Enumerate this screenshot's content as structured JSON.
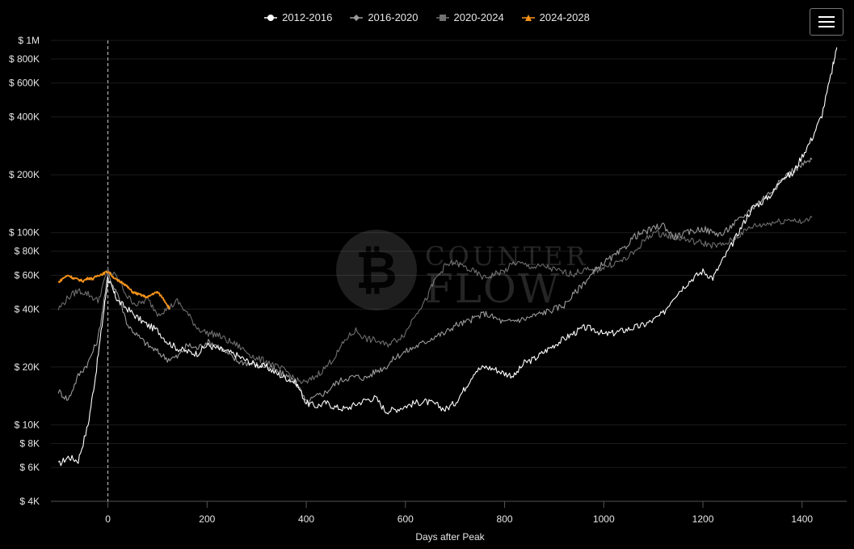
{
  "legend": [
    {
      "label": "2012-2016",
      "color": "#ffffff",
      "marker": "circle"
    },
    {
      "label": "2016-2020",
      "color": "#9a9a9a",
      "marker": "diamond"
    },
    {
      "label": "2020-2024",
      "color": "#707070",
      "marker": "square"
    },
    {
      "label": "2024-2028",
      "color": "#f7931a",
      "marker": "triangle"
    }
  ],
  "menu_icon": "hamburger-menu-icon",
  "watermark": {
    "counter": "COUNTER",
    "flow": "FLOW",
    "logo_glyph": "₿"
  },
  "chart_data": {
    "type": "line",
    "xlabel": "Days after Peak",
    "ylabel": "",
    "y_scale": "log",
    "xlim": [
      -115,
      1490
    ],
    "ylim": [
      4000,
      1000000
    ],
    "x_ticks": [
      0,
      200,
      400,
      600,
      800,
      1000,
      1200,
      1400
    ],
    "x_tick_labels": [
      "0",
      "200",
      "400",
      "600",
      "800",
      "1000",
      "1200",
      "1400"
    ],
    "y_ticks": [
      4000,
      6000,
      8000,
      10000,
      20000,
      40000,
      60000,
      80000,
      100000,
      200000,
      400000,
      600000,
      800000,
      1000000
    ],
    "y_tick_labels": [
      "$ 4K",
      "$ 6K",
      "$ 8K",
      "$ 10K",
      "$ 20K",
      "$ 40K",
      "$ 60K",
      "$ 80K",
      "$ 100K",
      "$ 200K",
      "$ 400K",
      "$ 600K",
      "$ 800K",
      "$ 1M"
    ],
    "peak_marker_x": 0,
    "grid": true,
    "series": [
      {
        "name": "2012-2016",
        "color": "#ffffff",
        "x": [
          -100,
          -80,
          -60,
          -40,
          -25,
          -10,
          0,
          10,
          20,
          40,
          60,
          80,
          100,
          120,
          140,
          160,
          180,
          200,
          220,
          240,
          260,
          280,
          300,
          320,
          340,
          360,
          380,
          400,
          420,
          440,
          460,
          480,
          500,
          520,
          540,
          560,
          580,
          600,
          620,
          640,
          660,
          680,
          700,
          720,
          740,
          760,
          780,
          800,
          820,
          840,
          860,
          880,
          900,
          920,
          940,
          960,
          980,
          1000,
          1020,
          1040,
          1060,
          1080,
          1100,
          1120,
          1140,
          1160,
          1180,
          1200,
          1220,
          1240,
          1260,
          1280,
          1300,
          1320,
          1340,
          1360,
          1380,
          1400,
          1420,
          1440,
          1460,
          1470
        ],
        "y": [
          6200,
          6800,
          6500,
          10000,
          18000,
          36000,
          58000,
          50000,
          44000,
          40000,
          36000,
          33000,
          31000,
          27000,
          25000,
          24000,
          23500,
          26000,
          25000,
          24000,
          23000,
          21500,
          20500,
          20000,
          18500,
          17500,
          16500,
          13000,
          12500,
          13000,
          12300,
          12100,
          12800,
          13500,
          13800,
          11800,
          12000,
          12500,
          13000,
          13200,
          12800,
          12000,
          13000,
          15500,
          19000,
          20000,
          19500,
          18500,
          18000,
          21000,
          22000,
          24000,
          26000,
          28000,
          30000,
          32000,
          31500,
          29500,
          30000,
          31000,
          32000,
          33000,
          35000,
          38000,
          46000,
          52000,
          58000,
          63000,
          58000,
          72000,
          88000,
          110000,
          135000,
          145000,
          160000,
          195000,
          200000,
          250000,
          310000,
          410000,
          690000,
          920000
        ]
      },
      {
        "name": "2016-2020",
        "color": "#9a9a9a",
        "x": [
          -100,
          -80,
          -60,
          -40,
          -20,
          0,
          20,
          40,
          60,
          80,
          100,
          120,
          140,
          160,
          180,
          200,
          220,
          240,
          260,
          280,
          300,
          320,
          340,
          360,
          380,
          400,
          420,
          440,
          460,
          480,
          500,
          520,
          540,
          560,
          580,
          600,
          620,
          640,
          660,
          680,
          700,
          720,
          740,
          760,
          780,
          800,
          820,
          840,
          860,
          880,
          900,
          920,
          940,
          960,
          980,
          1000,
          1020,
          1040,
          1060,
          1080,
          1100,
          1120,
          1140,
          1160,
          1180,
          1200,
          1220,
          1240,
          1260,
          1280,
          1300,
          1320,
          1340,
          1360,
          1380,
          1400,
          1420
        ],
        "y": [
          15000,
          13500,
          18000,
          21000,
          28000,
          60000,
          48000,
          33000,
          29000,
          26000,
          24000,
          22000,
          22500,
          26000,
          25000,
          27000,
          26000,
          23500,
          21500,
          21000,
          20500,
          20200,
          19000,
          18000,
          16500,
          13000,
          14000,
          14800,
          16500,
          17500,
          17800,
          17500,
          19000,
          20000,
          22500,
          24000,
          25500,
          27000,
          29000,
          30000,
          33000,
          34000,
          36000,
          38000,
          36000,
          34000,
          35000,
          35500,
          37000,
          38500,
          40000,
          42000,
          48000,
          55000,
          62000,
          70000,
          75000,
          82000,
          95000,
          100000,
          105000,
          110000,
          95000,
          98000,
          102000,
          105000,
          100000,
          98000,
          110000,
          120000,
          135000,
          150000,
          165000,
          190000,
          210000,
          225000,
          240000
        ]
      },
      {
        "name": "2020-2024",
        "color": "#6e6e6e",
        "x": [
          -100,
          -80,
          -60,
          -40,
          -20,
          0,
          20,
          40,
          60,
          80,
          100,
          120,
          140,
          160,
          180,
          200,
          220,
          240,
          260,
          280,
          300,
          320,
          340,
          360,
          380,
          400,
          420,
          440,
          460,
          480,
          500,
          520,
          540,
          560,
          580,
          600,
          620,
          640,
          660,
          680,
          700,
          720,
          740,
          760,
          780,
          800,
          820,
          840,
          860,
          880,
          900,
          920,
          940,
          960,
          980,
          1000,
          1020,
          1040,
          1060,
          1080,
          1100,
          1120,
          1140,
          1160,
          1180,
          1200,
          1220,
          1240,
          1260,
          1280,
          1300,
          1320,
          1340,
          1360,
          1380,
          1400,
          1420
        ],
        "y": [
          40000,
          46000,
          50000,
          48000,
          44000,
          64000,
          58000,
          46000,
          42000,
          45000,
          38000,
          40000,
          44000,
          38000,
          32000,
          30000,
          29500,
          27500,
          26000,
          24000,
          22000,
          21500,
          20000,
          19000,
          17000,
          16500,
          18000,
          20000,
          23000,
          28000,
          31000,
          28000,
          27500,
          26000,
          27500,
          30000,
          38000,
          44000,
          57000,
          67000,
          70000,
          66000,
          62000,
          58000,
          61000,
          63000,
          70000,
          68000,
          66000,
          67000,
          64000,
          62000,
          61000,
          64000,
          63000,
          66000,
          69000,
          72000,
          78000,
          90000,
          100000,
          98000,
          95000,
          93000,
          90000,
          88000,
          86000,
          86000,
          92000,
          100000,
          108000,
          110000,
          113000,
          115000,
          118000,
          112000,
          120000
        ]
      },
      {
        "name": "2024-2028",
        "color": "#f7931a",
        "x": [
          -100,
          -90,
          -80,
          -70,
          -60,
          -50,
          -40,
          -30,
          -20,
          -10,
          0,
          10,
          20,
          30,
          40,
          50,
          60,
          70,
          80,
          90,
          100,
          110,
          120,
          125
        ],
        "y": [
          55000,
          58000,
          60000,
          58000,
          57000,
          56000,
          58000,
          57500,
          60000,
          61000,
          63000,
          59000,
          56000,
          55000,
          52000,
          49000,
          48000,
          47000,
          46000,
          48000,
          49000,
          46000,
          42000,
          40000
        ]
      }
    ]
  }
}
